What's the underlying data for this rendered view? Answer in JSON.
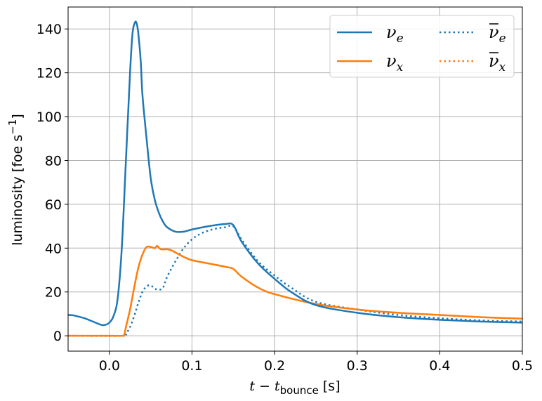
{
  "chart_data": {
    "type": "line",
    "xlabel": "t − t_bounce [s]",
    "xlabel_parts": {
      "main": "t − t",
      "sub": "bounce",
      "unit": " [s]"
    },
    "ylabel": "luminosity [foe s−1]",
    "ylabel_parts": {
      "main": "luminosity [foe s",
      "sup": "−1",
      "end": "]"
    },
    "xlim": [
      -0.05,
      0.5
    ],
    "ylim": [
      -7,
      150
    ],
    "xticks": [
      0.0,
      0.1,
      0.2,
      0.3,
      0.4,
      0.5
    ],
    "xtick_labels": [
      "0.0",
      "0.1",
      "0.2",
      "0.3",
      "0.4",
      "0.5"
    ],
    "yticks": [
      0,
      20,
      40,
      60,
      80,
      100,
      120,
      140
    ],
    "ytick_labels": [
      "0",
      "20",
      "40",
      "60",
      "80",
      "100",
      "120",
      "140"
    ],
    "grid": true,
    "legend_position": "top-right",
    "series": [
      {
        "name": "ν_e",
        "name_main": "ν",
        "name_sub": "e",
        "bar": false,
        "color": "#1f77b4",
        "style": "solid",
        "x": [
          -0.05,
          -0.045,
          -0.04,
          -0.03,
          -0.02,
          -0.01,
          -0.005,
          0.0,
          0.005,
          0.01,
          0.015,
          0.02,
          0.025,
          0.028,
          0.031,
          0.033,
          0.035,
          0.038,
          0.04,
          0.045,
          0.05,
          0.055,
          0.06,
          0.065,
          0.07,
          0.08,
          0.09,
          0.1,
          0.12,
          0.14,
          0.15,
          0.16,
          0.18,
          0.2,
          0.22,
          0.25,
          0.3,
          0.35,
          0.4,
          0.45,
          0.5
        ],
        "y": [
          9.5,
          9.4,
          9.0,
          8.0,
          6.5,
          5.0,
          5.0,
          6.0,
          9.0,
          17.0,
          40.0,
          80.0,
          120.0,
          138.0,
          143.0,
          142.5,
          138.0,
          125.0,
          110.0,
          90.0,
          72.0,
          62.0,
          56.0,
          52.0,
          49.5,
          47.5,
          47.5,
          48.5,
          50.0,
          51.0,
          50.5,
          43.0,
          33.0,
          26.0,
          20.0,
          14.0,
          10.5,
          8.5,
          7.3,
          6.5,
          6.0
        ]
      },
      {
        "name": "ν_x",
        "name_main": "ν",
        "name_sub": "x",
        "bar": false,
        "color": "#ff7f0e",
        "style": "solid",
        "x": [
          -0.05,
          0.0,
          0.015,
          0.018,
          0.02,
          0.025,
          0.03,
          0.035,
          0.04,
          0.045,
          0.05,
          0.055,
          0.058,
          0.062,
          0.07,
          0.075,
          0.08,
          0.09,
          0.1,
          0.12,
          0.14,
          0.15,
          0.16,
          0.18,
          0.2,
          0.25,
          0.3,
          0.35,
          0.4,
          0.45,
          0.5
        ],
        "y": [
          0,
          0,
          0,
          0.5,
          4.0,
          12.0,
          22.0,
          31.0,
          37.0,
          40.5,
          40.5,
          40.0,
          41.0,
          39.5,
          39.5,
          39.0,
          38.0,
          36.0,
          34.5,
          33.0,
          31.5,
          30.5,
          27.0,
          22.0,
          19.0,
          14.5,
          12.0,
          10.5,
          9.5,
          8.5,
          7.8
        ]
      },
      {
        "name": "ν̄_e",
        "name_main": "ν",
        "name_sub": "e",
        "bar": true,
        "color": "#1f77b4",
        "style": "dotted",
        "x": [
          -0.05,
          0.015,
          0.02,
          0.025,
          0.03,
          0.035,
          0.04,
          0.045,
          0.05,
          0.055,
          0.06,
          0.065,
          0.07,
          0.08,
          0.09,
          0.1,
          0.11,
          0.12,
          0.13,
          0.14,
          0.15,
          0.16,
          0.18,
          0.2,
          0.22,
          0.25,
          0.3,
          0.35,
          0.4,
          0.45,
          0.5
        ],
        "y": [
          0,
          0,
          1.0,
          4.0,
          9.0,
          15.0,
          20.0,
          22.5,
          23.0,
          21.5,
          21.0,
          22.0,
          27.0,
          34.0,
          40.0,
          44.0,
          46.5,
          48.0,
          49.0,
          49.5,
          50.0,
          44.0,
          34.0,
          27.5,
          22.0,
          15.5,
          12.0,
          9.5,
          8.0,
          7.0,
          6.5
        ]
      },
      {
        "name": "ν̄_x",
        "name_main": "ν",
        "name_sub": "x",
        "bar": true,
        "color": "#ff7f0e",
        "style": "dotted",
        "x": [
          -0.05,
          0.0,
          0.015,
          0.018,
          0.02,
          0.025,
          0.03,
          0.035,
          0.04,
          0.045,
          0.05,
          0.055,
          0.058,
          0.062,
          0.07,
          0.075,
          0.08,
          0.09,
          0.1,
          0.12,
          0.14,
          0.15,
          0.16,
          0.18,
          0.2,
          0.25,
          0.3,
          0.35,
          0.4,
          0.45,
          0.5
        ],
        "y": [
          0,
          0,
          0,
          0.5,
          4.0,
          12.0,
          22.0,
          31.0,
          37.0,
          40.5,
          40.5,
          40.0,
          41.0,
          39.5,
          39.5,
          39.0,
          38.0,
          36.0,
          34.5,
          33.0,
          31.5,
          30.5,
          27.0,
          22.0,
          19.0,
          14.5,
          12.0,
          10.5,
          9.5,
          8.5,
          7.8
        ]
      }
    ]
  }
}
